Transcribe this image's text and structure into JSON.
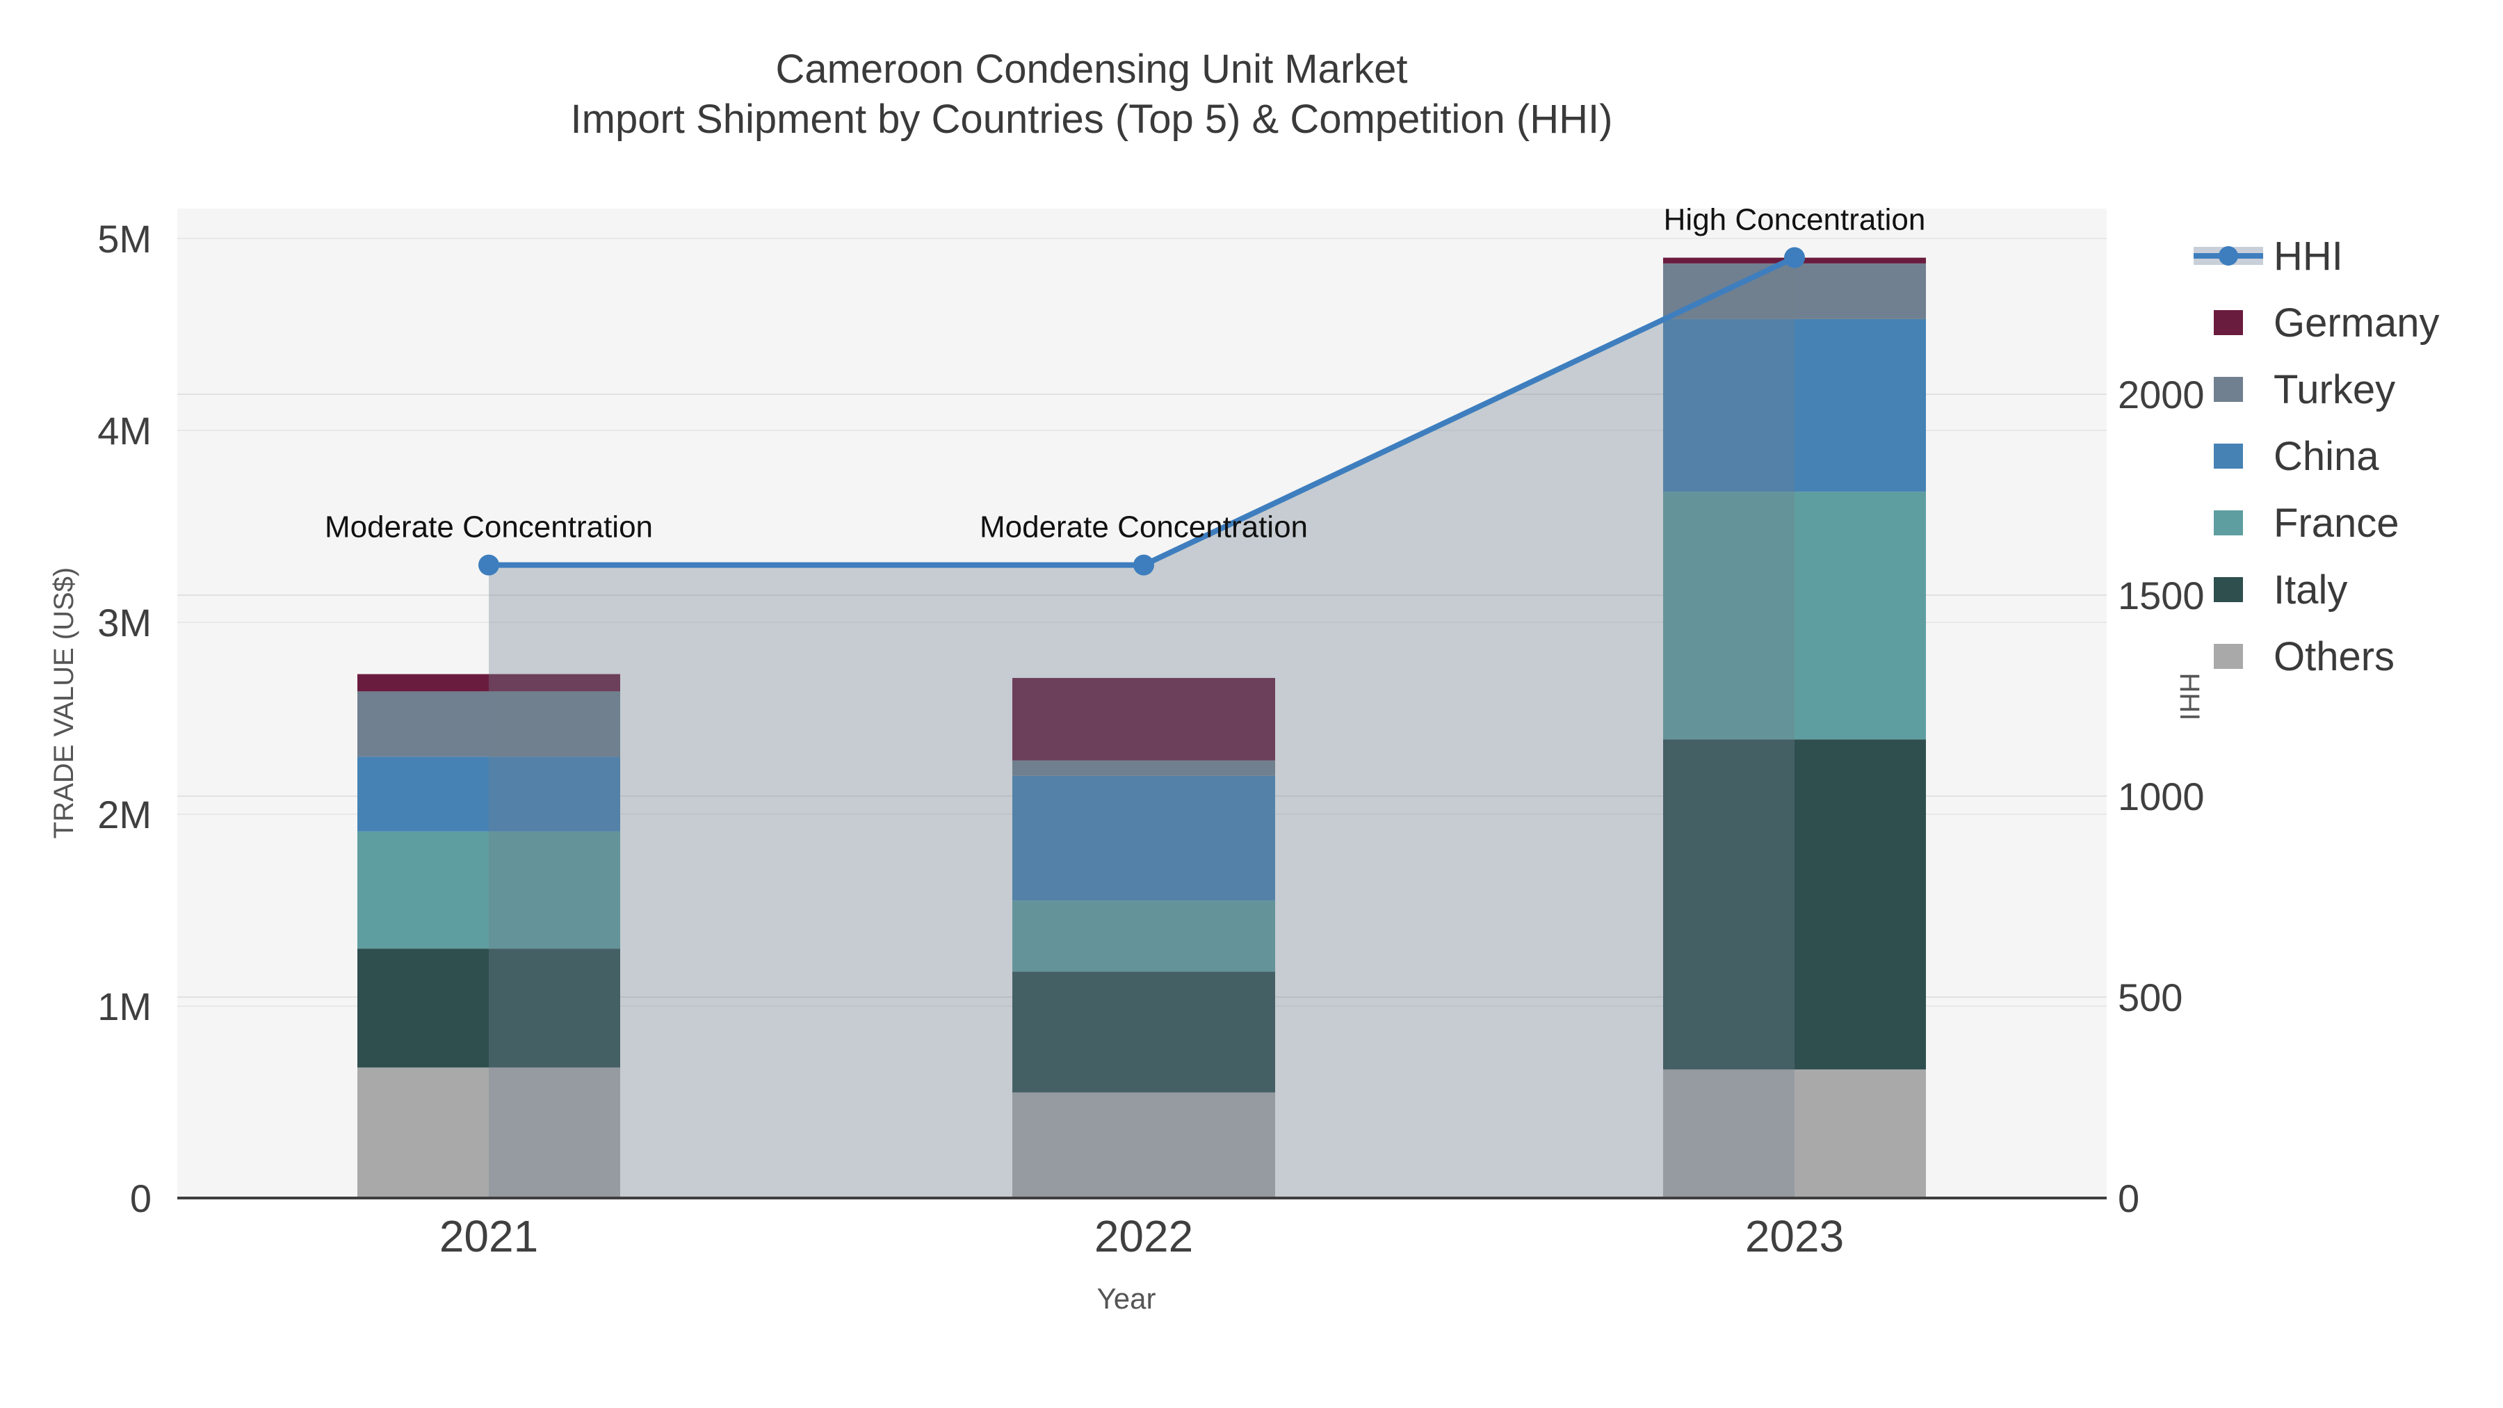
{
  "colors": {
    "hhi_line": "#3E7EBE",
    "area_fill": "rgba(112,128,144,0.35)",
    "plot_bg": "#F5F5F5",
    "axis_line": "#3F3F3F",
    "grid_left": "#E8E8E8",
    "grid_right": "#E1E1E1",
    "text_primary": "#3A3A3A",
    "text_ticks": "#3F3F3F",
    "text_axis_title": "#555555",
    "annotation": "#111111"
  },
  "legend": {
    "items": [
      {
        "label": "HHI",
        "type": "line"
      },
      {
        "label": "Germany",
        "type": "swatch",
        "color": "#6A1C3E"
      },
      {
        "label": "Turkey",
        "type": "swatch",
        "color": "#708090"
      },
      {
        "label": "China",
        "type": "swatch",
        "color": "#4682B4"
      },
      {
        "label": "France",
        "type": "swatch",
        "color": "#5F9EA0"
      },
      {
        "label": "Italy",
        "type": "swatch",
        "color": "#2F4F4F"
      },
      {
        "label": "Others",
        "type": "swatch",
        "color": "#A9A9A9"
      }
    ]
  },
  "chart_data": {
    "type": "combo",
    "bar_type": "stacked",
    "title": "Cameroon Condensing Unit Market",
    "subtitle": "Import Shipment by Countries (Top 5) & Competition (HHI)",
    "xlabel": "Year",
    "ylabel_left": "TRADE VALUE (US$)",
    "ylabel_right": "HHI",
    "categories": [
      "2021",
      "2022",
      "2023"
    ],
    "bar_series": [
      {
        "name": "Germany",
        "color": "#6A1C3E",
        "values": [
          90000,
          430000,
          30000
        ]
      },
      {
        "name": "Turkey",
        "color": "#708090",
        "values": [
          340000,
          80000,
          290000
        ]
      },
      {
        "name": "China",
        "color": "#4682B4",
        "values": [
          390000,
          650000,
          900000
        ]
      },
      {
        "name": "France",
        "color": "#5F9EA0",
        "values": [
          610000,
          370000,
          1290000
        ]
      },
      {
        "name": "Italy",
        "color": "#2F4F4F",
        "values": [
          620000,
          630000,
          1720000
        ]
      },
      {
        "name": "Others",
        "color": "#A9A9A9",
        "values": [
          680000,
          550000,
          670000
        ]
      }
    ],
    "bar_totals_usd": [
      2730000,
      2710000,
      4900000
    ],
    "stack_order_bottom_to_top": [
      "Others",
      "Italy",
      "France",
      "China",
      "Turkey",
      "Germany"
    ],
    "line_series": {
      "name": "HHI",
      "values": [
        1575,
        1575,
        2340
      ]
    },
    "annotations": [
      {
        "category": "2021",
        "text": "Moderate Concentration"
      },
      {
        "category": "2022",
        "text": "Moderate Concentration"
      },
      {
        "category": "2023",
        "text": "High Concentration"
      }
    ],
    "y_left_ticks": [
      "0",
      "1M",
      "2M",
      "3M",
      "4M",
      "5M"
    ],
    "y_left_range_usd": [
      0,
      5150000
    ],
    "y_right_ticks": [
      "0",
      "500",
      "1000",
      "1500",
      "2000"
    ],
    "y_right_tick_values": [
      0,
      500,
      1000,
      1500,
      2000
    ],
    "y_right_range": [
      0,
      2460
    ],
    "grid": true,
    "legend_position": "right"
  }
}
